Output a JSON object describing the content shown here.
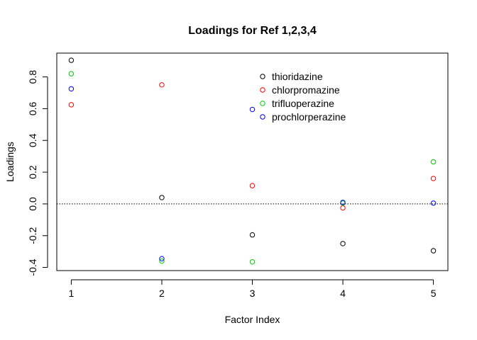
{
  "chart_data": {
    "type": "scatter",
    "title": "Loadings for Ref 1,2,3,4",
    "xlabel": "Factor Index",
    "ylabel": "Loadings",
    "x": [
      1,
      2,
      3,
      4,
      5
    ],
    "xlim": [
      0.84,
      5.16
    ],
    "ylim": [
      -0.42,
      0.95
    ],
    "xticks": [
      1,
      2,
      3,
      4,
      5
    ],
    "yticks": [
      -0.4,
      -0.2,
      0.0,
      0.2,
      0.4,
      0.6,
      0.8
    ],
    "ytick_labels": [
      "-0.4",
      "-0.2",
      "0.0",
      "0.2",
      "0.4",
      "0.6",
      "0.8"
    ],
    "grid": false,
    "reference_line": {
      "y": 0,
      "style": "dotted"
    },
    "legend_position": "top-right",
    "series": [
      {
        "name": "thioridazine",
        "color": "#000000",
        "values": [
          0.905,
          0.04,
          -0.195,
          -0.25,
          -0.295
        ]
      },
      {
        "name": "chlorpromazine",
        "color": "#ff0000",
        "values": [
          0.625,
          0.75,
          0.115,
          -0.025,
          0.16
        ]
      },
      {
        "name": "trifluoperazine",
        "color": "#00cd00",
        "values": [
          0.82,
          -0.36,
          -0.365,
          0.005,
          0.265
        ]
      },
      {
        "name": "prochlorperazine",
        "color": "#0000ff",
        "values": [
          0.725,
          -0.345,
          0.595,
          0.01,
          0.005
        ]
      }
    ]
  }
}
